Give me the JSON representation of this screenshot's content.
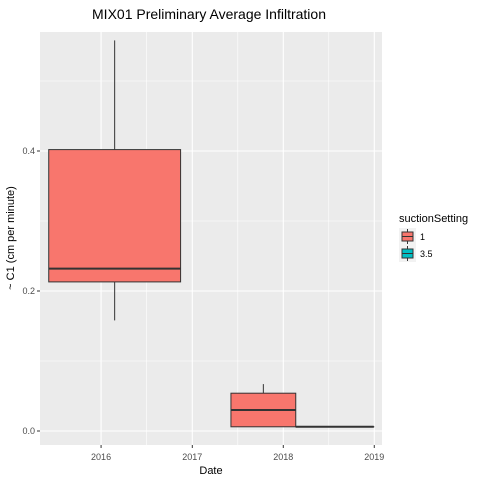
{
  "chart_data": {
    "type": "box",
    "title": "MIX01 Preliminary Average Infiltration",
    "xlabel": "Date",
    "ylabel": "~ C1 (cm per minute)",
    "x_type": "date",
    "xlim": [
      "2015-05-01",
      "2019-02-01"
    ],
    "ylim": [
      -0.02,
      0.57
    ],
    "x_ticks": [
      "2016-01-01",
      "2017-01-01",
      "2018-01-01",
      "2019-01-01"
    ],
    "x_tick_labels": [
      "2016",
      "2017",
      "2018",
      "2019"
    ],
    "y_ticks": [
      0.0,
      0.2,
      0.4
    ],
    "y_tick_labels": [
      "0.0",
      "0.2",
      "0.4"
    ],
    "grid": true,
    "background": "#ebebeb",
    "legend": {
      "title": "suctionSetting",
      "position": "right",
      "entries": [
        {
          "label": "1",
          "color": "#f8766d"
        },
        {
          "label": "3.5",
          "color": "#00bfc4"
        }
      ]
    },
    "boxes": [
      {
        "group": "1",
        "x_start": "2015-06-05",
        "x_end": "2016-11-15",
        "min": 0.158,
        "q1": 0.213,
        "median": 0.232,
        "q3": 0.402,
        "max": 0.558
      },
      {
        "group": "1",
        "x_start": "2017-06-05",
        "x_end": "2018-02-20",
        "min": 0.006,
        "q1": 0.006,
        "median": 0.03,
        "q3": 0.054,
        "max": 0.067
      },
      {
        "group": "1",
        "x_start": "2018-02-20",
        "x_end": "2018-12-30",
        "min": 0.006,
        "q1": 0.006,
        "median": 0.006,
        "q3": 0.006,
        "max": 0.006
      }
    ]
  }
}
